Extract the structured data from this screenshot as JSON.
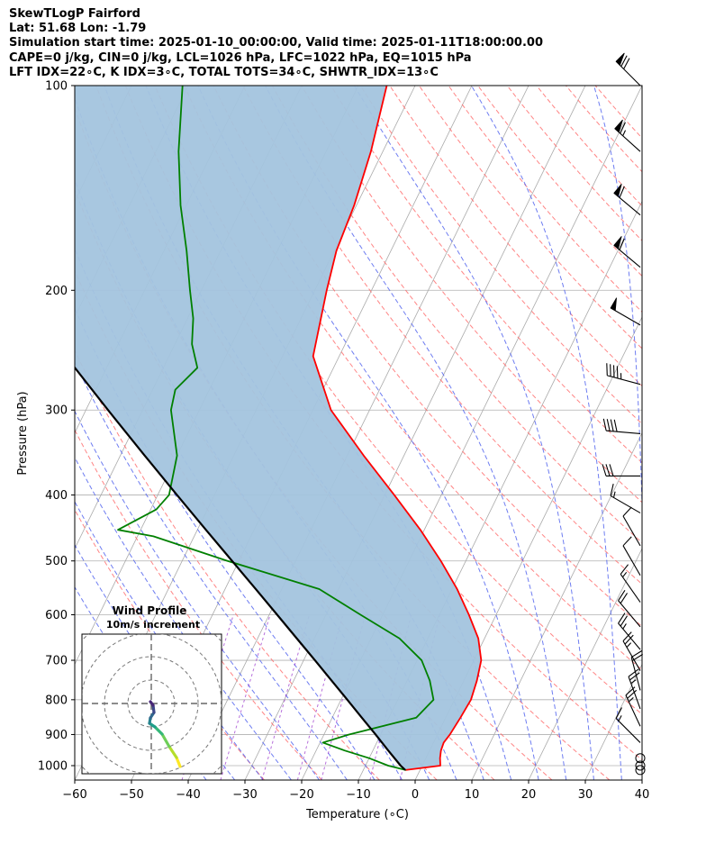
{
  "header": {
    "line1": "SkewTLogP Fairford",
    "line2": "Lat: 51.68   Lon: -1.79",
    "line3": "Simulation start time: 2025-01-10_00:00:00, Valid time: 2025-01-11T18:00:00.00",
    "line4": "CAPE=0 j/kg, CIN=0 j/kg, LCL=1026 hPa, LFC=1022 hPa, EQ=1015 hPa",
    "line5": "LFT IDX=22∘C, K IDX=3∘C, TOTAL TOTS=34∘C, SHWTR_IDX=13∘C"
  },
  "chart_data": {
    "type": "line",
    "title": "SkewTLogP Fairford",
    "xlabel": "Temperature (∘C)",
    "ylabel": "Pressure (hPa)",
    "xlim": [
      -60,
      40
    ],
    "ylim": [
      1050,
      100
    ],
    "yscale": "log",
    "xticks": [
      -60,
      -50,
      -40,
      -30,
      -20,
      -10,
      0,
      10,
      20,
      30,
      40
    ],
    "xtick_labels": [
      "−60",
      "−50",
      "−40",
      "−30",
      "−20",
      "−10",
      "0",
      "10",
      "20",
      "30",
      "40"
    ],
    "yticks": [
      100,
      200,
      300,
      400,
      500,
      600,
      700,
      800,
      900,
      1000
    ],
    "ytick_labels": [
      "100",
      "200",
      "300",
      "400",
      "500",
      "600",
      "700",
      "800",
      "900",
      "1000"
    ],
    "grid": true,
    "colors": {
      "temperature": "#ff0000",
      "dewpoint": "#008000",
      "parcel": "#000000",
      "shade": "#a3c4de",
      "isotherm": "#aaaaaa",
      "dry_adiabat": "#ff6666",
      "moist_adiabat": "#5566ee",
      "mixing_ratio": "#9933cc"
    },
    "series": [
      {
        "key": "temperature",
        "pressure": [
          1015,
          1000,
          975,
          950,
          925,
          900,
          850,
          800,
          750,
          700,
          650,
          600,
          550,
          500,
          450,
          400,
          350,
          300,
          250,
          200,
          175,
          150,
          125,
          100
        ],
        "temperature": [
          -2.6,
          3.2,
          2.5,
          2.0,
          1.8,
          2.2,
          2.6,
          2.9,
          2.3,
          1.3,
          -1.1,
          -4.8,
          -9.1,
          -14.4,
          -20.7,
          -28.3,
          -37.1,
          -46.8,
          -54.6,
          -57.9,
          -59.6,
          -60.4,
          -62.1,
          -65.0
        ]
      },
      {
        "key": "dewpoint",
        "pressure": [
          1015,
          1000,
          975,
          950,
          925,
          900,
          850,
          800,
          750,
          700,
          650,
          600,
          550,
          500,
          460,
          450,
          420,
          400,
          350,
          300,
          280,
          260,
          240,
          220,
          200,
          175,
          150,
          125,
          100
        ],
        "temperature": [
          -2.5,
          -6.0,
          -10.0,
          -15.0,
          -19.5,
          -15.6,
          -5.2,
          -3.7,
          -6.0,
          -9.2,
          -15.0,
          -23.9,
          -33.4,
          -52.0,
          -67.2,
          -74.0,
          -69.0,
          -68.0,
          -70.0,
          -75.0,
          -76.0,
          -74.0,
          -77.0,
          -79.0,
          -82.0,
          -86.0,
          -91.0,
          -96.0,
          -101.0
        ]
      },
      {
        "key": "parcel",
        "pressure": [
          1015,
          1000,
          950,
          900,
          850,
          800,
          750,
          700,
          650,
          600,
          550,
          500,
          450,
          400,
          350,
          300,
          250,
          200,
          175,
          150,
          125,
          100
        ],
        "temperature": [
          -2.6,
          -3.8,
          -7.3,
          -10.9,
          -14.8,
          -18.9,
          -23.3,
          -28.0,
          -33.1,
          -38.6,
          -44.6,
          -51.2,
          -58.5,
          -66.6,
          -75.7,
          -86.1,
          -98.2,
          -112.7,
          -121.1,
          -130.5,
          -141.3,
          -154.1
        ]
      }
    ],
    "wind": {
      "pressure": [
        1015,
        1000,
        975,
        925,
        875,
        825,
        775,
        725,
        675,
        625,
        575,
        525,
        475,
        425,
        375,
        325,
        275,
        225,
        185,
        155,
        125,
        100
      ],
      "speed": [
        0,
        0,
        0,
        7,
        13,
        12,
        11,
        14,
        12,
        10,
        8,
        6,
        5,
        7,
        15,
        20,
        22,
        26,
        32,
        32,
        34,
        36
      ],
      "direction": [
        0,
        0,
        0,
        315,
        335,
        340,
        345,
        330,
        320,
        320,
        325,
        330,
        330,
        300,
        270,
        275,
        285,
        300,
        310,
        310,
        312,
        315
      ]
    },
    "inset": {
      "title": "Wind Profile",
      "subtitle": "10m/s increment"
    }
  }
}
